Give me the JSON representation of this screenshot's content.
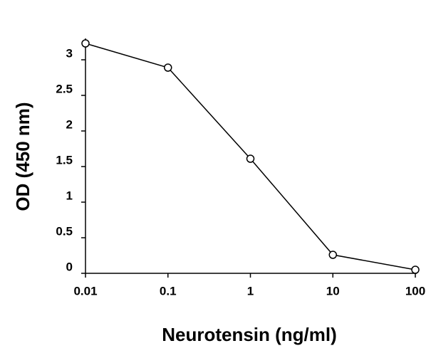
{
  "chart_data": {
    "type": "line",
    "x": [
      0.01,
      0.1,
      1,
      10,
      100
    ],
    "values": [
      3.23,
      2.89,
      1.61,
      0.26,
      0.05
    ],
    "color": "#000000",
    "xscale": "log",
    "xlim": [
      0.01,
      100
    ],
    "xticks": [
      0.01,
      0.1,
      1,
      10,
      100
    ],
    "ylim": [
      0,
      3.3
    ],
    "yticks": [
      0,
      0.5,
      1,
      1.5,
      2,
      2.5,
      3
    ],
    "xlabel": "Neurotensin (ng/ml)",
    "ylabel": "OD (450 nm)",
    "grid": false
  }
}
